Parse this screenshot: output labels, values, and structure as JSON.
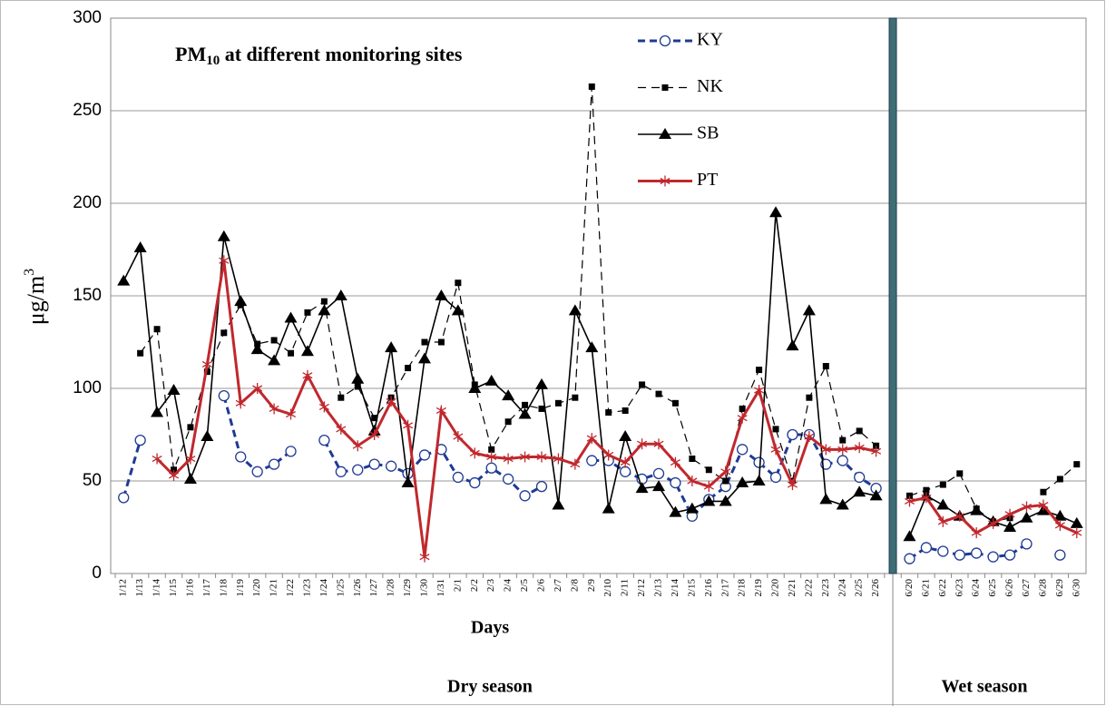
{
  "chart_data": {
    "type": "line",
    "title": [
      "PM",
      "10",
      " at different monitoring sites"
    ],
    "y_label": [
      "μg/m",
      "3"
    ],
    "x_label": "Days",
    "annotations": [
      "Dry season",
      "Wet season"
    ],
    "categories": [
      "1/12",
      "1/13",
      "1/14",
      "1/15",
      "1/16",
      "1/17",
      "1/18",
      "1/19",
      "1/20",
      "1/21",
      "1/22",
      "1/23",
      "1/24",
      "1/25",
      "1/26",
      "1/27",
      "1/28",
      "1/29",
      "1/30",
      "1/31",
      "2/1",
      "2/2",
      "2/3",
      "2/4",
      "2/5",
      "2/6",
      "2/7",
      "2/8",
      "2/9",
      "2/10",
      "2/11",
      "2/12",
      "2/13",
      "2/14",
      "2/15",
      "2/16",
      "2/17",
      "2/18",
      "2/19",
      "2/20",
      "2/21",
      "2/22",
      "2/23",
      "2/24",
      "2/25",
      "2/26",
      null,
      "6/20",
      "6/21",
      "6/22",
      "6/23",
      "6/24",
      "6/25",
      "6/26",
      "6/27",
      "6/28",
      "6/29",
      "6/30"
    ],
    "series": [
      {
        "name": "KY",
        "color": "#1f3a93",
        "marker": "circle",
        "dashed": true,
        "values": [
          41,
          72,
          null,
          null,
          null,
          null,
          96,
          63,
          55,
          59,
          66,
          null,
          72,
          55,
          56,
          59,
          58,
          54,
          64,
          67,
          52,
          49,
          57,
          51,
          42,
          47,
          null,
          null,
          61,
          61,
          55,
          51,
          54,
          49,
          31,
          40,
          47,
          67,
          60,
          52,
          75,
          75,
          59,
          61,
          52,
          46,
          null,
          8,
          14,
          12,
          10,
          11,
          9,
          10,
          16,
          null,
          10,
          null
        ]
      },
      {
        "name": "NK",
        "color": "#000000",
        "marker": "square",
        "dashed": true,
        "values": [
          null,
          119,
          132,
          56,
          79,
          109,
          130,
          145,
          124,
          126,
          119,
          141,
          147,
          95,
          101,
          84,
          95,
          111,
          125,
          125,
          157,
          102,
          67,
          82,
          91,
          89,
          92,
          95,
          263,
          87,
          88,
          102,
          97,
          92,
          62,
          56,
          50,
          89,
          110,
          78,
          50,
          95,
          112,
          72,
          77,
          69,
          null,
          42,
          45,
          48,
          54,
          35,
          28,
          30,
          null,
          44,
          51,
          59
        ]
      },
      {
        "name": "SB",
        "color": "#000000",
        "marker": "triangle",
        "dashed": false,
        "values": [
          158,
          176,
          87,
          99,
          51,
          74,
          182,
          147,
          121,
          115,
          138,
          120,
          142,
          150,
          105,
          77,
          122,
          49,
          116,
          150,
          142,
          100,
          104,
          96,
          86,
          102,
          37,
          142,
          122,
          35,
          74,
          46,
          47,
          33,
          35,
          39,
          39,
          49,
          50,
          195,
          123,
          142,
          40,
          37,
          44,
          42,
          null,
          20,
          42,
          37,
          31,
          34,
          28,
          25,
          30,
          34,
          31,
          27
        ]
      },
      {
        "name": "PT",
        "color": "#c0282d",
        "marker": "asterisk",
        "dashed": false,
        "values": [
          null,
          null,
          62,
          53,
          62,
          113,
          169,
          92,
          100,
          89,
          86,
          107,
          90,
          78,
          69,
          75,
          93,
          80,
          9,
          88,
          74,
          65,
          63,
          62,
          63,
          63,
          62,
          59,
          73,
          64,
          60,
          70,
          70,
          60,
          50,
          47,
          55,
          84,
          99,
          67,
          48,
          74,
          67,
          67,
          68,
          66,
          null,
          39,
          41,
          28,
          31,
          22,
          27,
          32,
          36,
          37,
          26,
          22
        ]
      }
    ],
    "ylim": [
      0,
      300
    ],
    "yticks": [
      0,
      50,
      100,
      150,
      200,
      250,
      300
    ],
    "grid": true
  }
}
